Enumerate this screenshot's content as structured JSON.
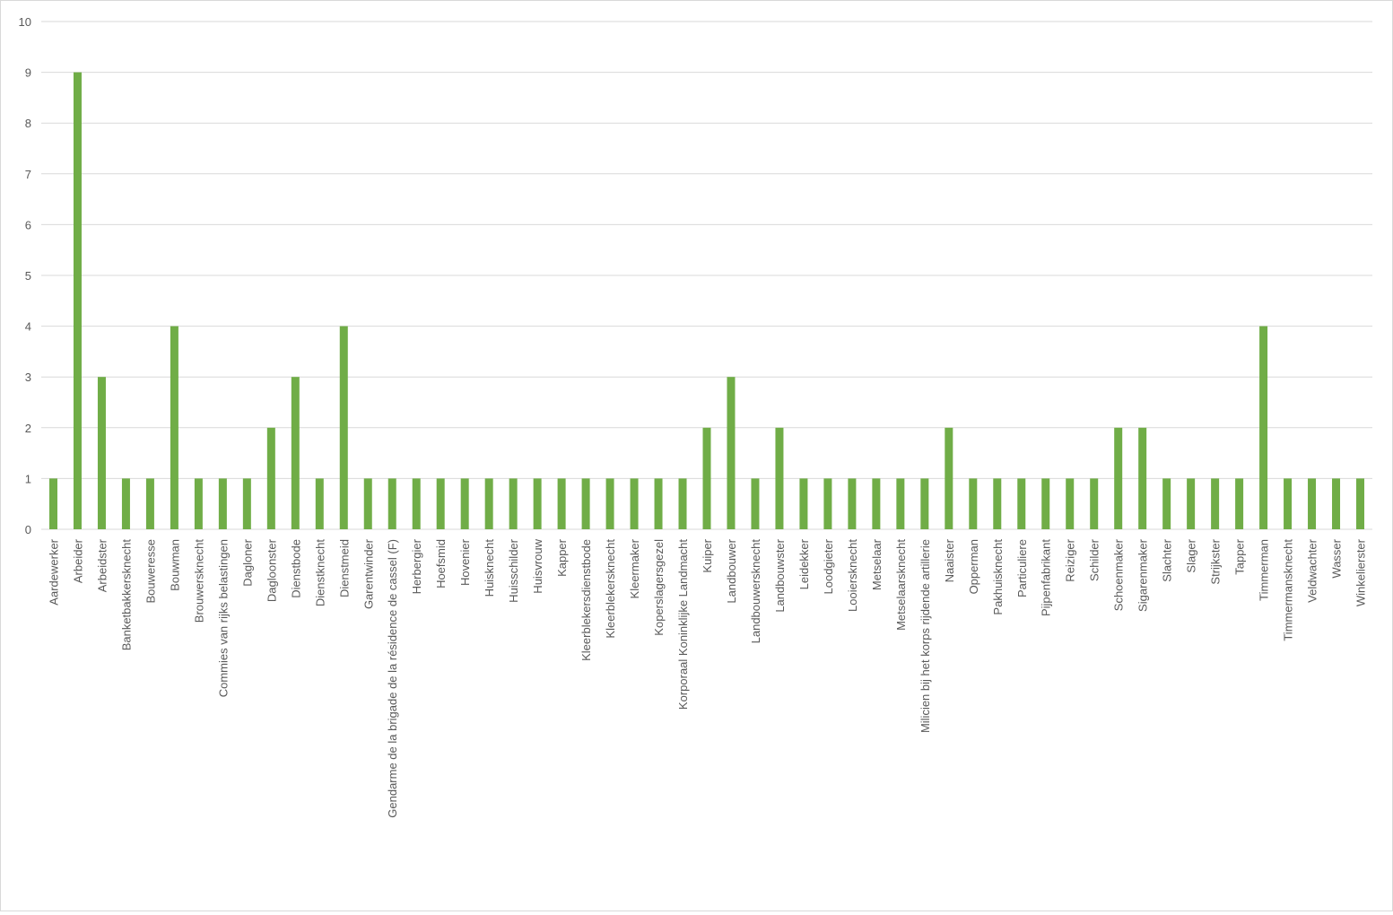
{
  "chart_data": {
    "type": "bar",
    "title": "",
    "xlabel": "",
    "ylabel": "",
    "ylim": [
      0,
      10
    ],
    "yticks": [
      0,
      1,
      2,
      3,
      4,
      5,
      6,
      7,
      8,
      9,
      10
    ],
    "grid": true,
    "legend": "none",
    "bar_color": "#70ad47",
    "grid_color": "#d9d9d9",
    "categories": [
      "Aardewerker",
      "Arbeider",
      "Arbeidster",
      "Banketbakkersknecht",
      "Bouweresse",
      "Bouwman",
      "Brouwersknecht",
      "Commies van rijks belastingen",
      "Dagloner",
      "Dagloonster",
      "Dienstbode",
      "Dienstknecht",
      "Dienstmeid",
      "Garentwinder",
      "Gendarme de la brigade de la résidence de cassel (F)",
      "Herbergier",
      "Hoefsmid",
      "Hovenier",
      "Huisknecht",
      "Huisschilder",
      "Huisvrouw",
      "Kapper",
      "Kleerblekersdienstbode",
      "Kleerblekersknecht",
      "Kleermaker",
      "Koperslagersgezel",
      "Korporaal Koninklijke Landmacht",
      "Kuiper",
      "Landbouwer",
      "Landbouwersknecht",
      "Landbouwster",
      "Leidekker",
      "Loodgieter",
      "Looiersknecht",
      "Metselaar",
      "Metselaarsknecht",
      "Milicien bij het korps rijdende artillerie",
      "Naaister",
      "Opperman",
      "Pakhuisknecht",
      "Particuliere",
      "Pijpenfabrikant",
      "Reiziger",
      "Schilder",
      "Schoenmaker",
      "Sigarenmaker",
      "Slachter",
      "Slager",
      "Strijkster",
      "Tapper",
      "Timmerman",
      "Timmermansknecht",
      "Veldwachter",
      "Wasser",
      "Winkelierster"
    ],
    "values": [
      1,
      9,
      3,
      1,
      1,
      4,
      1,
      1,
      1,
      2,
      3,
      1,
      4,
      1,
      1,
      1,
      1,
      1,
      1,
      1,
      1,
      1,
      1,
      1,
      1,
      1,
      1,
      2,
      3,
      1,
      2,
      1,
      1,
      1,
      1,
      1,
      1,
      2,
      1,
      1,
      1,
      1,
      1,
      1,
      2,
      2,
      1,
      1,
      1,
      1,
      4,
      1,
      1,
      1,
      1
    ]
  }
}
